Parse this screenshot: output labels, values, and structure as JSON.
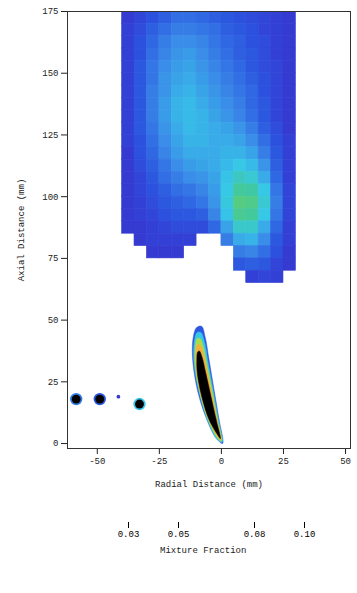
{
  "chart_data": {
    "type": "heatmap",
    "xlabel": "Radial Distance (mm)",
    "ylabel": "Axial Distance (mm)",
    "xlim": [
      -62,
      52
    ],
    "ylim": [
      -2,
      175
    ],
    "xticks": [
      -50,
      -25,
      0,
      25,
      50
    ],
    "yticks": [
      0,
      25,
      50,
      75,
      100,
      125,
      150,
      175
    ],
    "x": [
      -37.5,
      -32.5,
      -27.5,
      -22.5,
      -17.5,
      -12.5,
      -7.5,
      -2.5,
      2.5,
      7.5,
      12.5,
      17.5,
      22.5,
      27.5
    ],
    "y": [
      172.5,
      167.5,
      162.5,
      157.5,
      152.5,
      147.5,
      142.5,
      137.5,
      132.5,
      127.5,
      122.5,
      117.5,
      112.5,
      107.5,
      102.5,
      97.5,
      92.5,
      87.5,
      82.5,
      77.5,
      72.5,
      67.5
    ],
    "z": [
      [
        0.03,
        0.032,
        0.034,
        0.036,
        0.038,
        0.038,
        0.037,
        0.036,
        0.035,
        0.034,
        0.033,
        0.032,
        0.031,
        0.03
      ],
      [
        0.031,
        0.033,
        0.036,
        0.038,
        0.04,
        0.04,
        0.039,
        0.038,
        0.036,
        0.035,
        0.034,
        0.032,
        0.031,
        0.03
      ],
      [
        0.031,
        0.034,
        0.037,
        0.04,
        0.042,
        0.042,
        0.041,
        0.039,
        0.037,
        0.036,
        0.034,
        0.033,
        0.031,
        0.03
      ],
      [
        0.031,
        0.034,
        0.038,
        0.041,
        0.043,
        0.044,
        0.042,
        0.04,
        0.038,
        0.036,
        0.035,
        0.033,
        0.031,
        0.03
      ],
      [
        0.031,
        0.035,
        0.039,
        0.042,
        0.044,
        0.045,
        0.043,
        0.041,
        0.039,
        0.037,
        0.035,
        0.033,
        0.032,
        0.03
      ],
      [
        0.031,
        0.035,
        0.039,
        0.043,
        0.045,
        0.046,
        0.044,
        0.042,
        0.04,
        0.038,
        0.036,
        0.034,
        0.032,
        0.03
      ],
      [
        0.031,
        0.035,
        0.04,
        0.043,
        0.046,
        0.047,
        0.045,
        0.043,
        0.041,
        0.039,
        0.037,
        0.034,
        0.032,
        0.03
      ],
      [
        0.031,
        0.035,
        0.04,
        0.044,
        0.047,
        0.048,
        0.046,
        0.044,
        0.042,
        0.04,
        0.037,
        0.035,
        0.032,
        0.03
      ],
      [
        0.031,
        0.035,
        0.04,
        0.044,
        0.047,
        0.048,
        0.047,
        0.045,
        0.043,
        0.041,
        0.038,
        0.035,
        0.032,
        0.03
      ],
      [
        0.031,
        0.035,
        0.039,
        0.043,
        0.046,
        0.048,
        0.047,
        0.046,
        0.045,
        0.043,
        0.04,
        0.036,
        0.033,
        0.03
      ],
      [
        0.031,
        0.034,
        0.038,
        0.042,
        0.045,
        0.047,
        0.047,
        0.046,
        0.046,
        0.045,
        0.042,
        0.038,
        0.034,
        0.031
      ],
      [
        0.03,
        0.034,
        0.037,
        0.041,
        0.044,
        0.046,
        0.046,
        0.046,
        0.047,
        0.047,
        0.045,
        0.04,
        0.035,
        0.031
      ],
      [
        0.03,
        0.033,
        0.036,
        0.039,
        0.042,
        0.044,
        0.045,
        0.046,
        0.048,
        0.05,
        0.048,
        0.043,
        0.036,
        0.031
      ],
      [
        0.03,
        0.032,
        0.035,
        0.038,
        0.04,
        0.042,
        0.043,
        0.045,
        0.049,
        0.054,
        0.052,
        0.046,
        0.037,
        0.031
      ],
      [
        0.03,
        0.032,
        0.034,
        0.036,
        0.038,
        0.039,
        0.041,
        0.044,
        0.05,
        0.058,
        0.057,
        0.05,
        0.039,
        0.032
      ],
      [
        0.03,
        0.031,
        0.033,
        0.035,
        0.036,
        0.037,
        0.039,
        0.043,
        0.051,
        0.061,
        0.06,
        0.052,
        0.04,
        0.032
      ],
      [
        0.03,
        0.031,
        0.032,
        0.034,
        0.035,
        0.035,
        0.036,
        0.041,
        0.049,
        0.059,
        0.058,
        0.05,
        0.039,
        0.032
      ],
      [
        0.03,
        0.03,
        0.031,
        0.032,
        0.033,
        0.033,
        0.033,
        0.037,
        0.045,
        0.053,
        0.053,
        0.046,
        0.037,
        0.031
      ],
      [
        null,
        0.03,
        0.031,
        0.031,
        0.031,
        0.031,
        null,
        null,
        0.04,
        0.046,
        0.047,
        0.042,
        0.035,
        0.031
      ],
      [
        null,
        null,
        0.03,
        0.03,
        0.03,
        null,
        null,
        null,
        null,
        0.04,
        0.041,
        0.038,
        0.034,
        0.03
      ],
      [
        null,
        null,
        null,
        null,
        null,
        null,
        null,
        null,
        null,
        0.035,
        0.036,
        0.035,
        0.032,
        0.03
      ],
      [
        null,
        null,
        null,
        null,
        null,
        null,
        null,
        null,
        null,
        null,
        0.031,
        0.032,
        0.031,
        null
      ]
    ],
    "spray_contours": [
      {
        "level": 0.035,
        "points": [
          [
            0.5,
            0
          ],
          [
            -1,
            10
          ],
          [
            -3,
            22
          ],
          [
            -5,
            34
          ],
          [
            -6.5,
            43
          ],
          [
            -8,
            47.5
          ],
          [
            -10,
            47
          ],
          [
            -11.5,
            42
          ],
          [
            -11.5,
            33
          ],
          [
            -9.5,
            21
          ],
          [
            -6,
            10
          ],
          [
            -2,
            2
          ]
        ]
      },
      {
        "level": 0.05,
        "points": [
          [
            0.3,
            0.5
          ],
          [
            -1.3,
            10
          ],
          [
            -3.4,
            22
          ],
          [
            -5.4,
            33
          ],
          [
            -6.8,
            41
          ],
          [
            -8.3,
            45
          ],
          [
            -9.8,
            45
          ],
          [
            -11,
            40.5
          ],
          [
            -11,
            32
          ],
          [
            -9,
            21
          ],
          [
            -5.8,
            10
          ],
          [
            -2,
            2
          ]
        ]
      },
      {
        "level": 0.07,
        "points": [
          [
            0,
            1
          ],
          [
            -1.6,
            10
          ],
          [
            -3.8,
            22
          ],
          [
            -5.8,
            32
          ],
          [
            -7.2,
            39
          ],
          [
            -8.5,
            42.5
          ],
          [
            -9.8,
            42.5
          ],
          [
            -10.6,
            38.5
          ],
          [
            -10.5,
            31
          ],
          [
            -8.7,
            20.5
          ],
          [
            -5.5,
            10
          ],
          [
            -1.8,
            2.5
          ]
        ]
      },
      {
        "level": 0.09,
        "points": [
          [
            -0.2,
            1.5
          ],
          [
            -1.9,
            10
          ],
          [
            -4.1,
            21
          ],
          [
            -6.1,
            31
          ],
          [
            -7.5,
            37
          ],
          [
            -8.7,
            40
          ],
          [
            -9.7,
            40
          ],
          [
            -10.3,
            36.5
          ],
          [
            -10.1,
            30
          ],
          [
            -8.3,
            20
          ],
          [
            -5.2,
            10
          ],
          [
            -1.6,
            3
          ]
        ]
      }
    ],
    "liquid_core": {
      "color": "#000000",
      "points": [
        [
          -0.4,
          2
        ],
        [
          -2.2,
          10
        ],
        [
          -4.4,
          20
        ],
        [
          -6.4,
          29
        ],
        [
          -7.8,
          35
        ],
        [
          -8.9,
          37.5
        ],
        [
          -9.6,
          37
        ],
        [
          -9.9,
          34
        ],
        [
          -9.7,
          28.5
        ],
        [
          -7.9,
          19
        ],
        [
          -4.9,
          9.5
        ],
        [
          -1.5,
          3.5
        ]
      ]
    },
    "droplets": [
      {
        "x": -58.5,
        "y": 18,
        "diameter": 5,
        "value": 0.04,
        "liquid": true
      },
      {
        "x": -49,
        "y": 18,
        "diameter": 5,
        "value": 0.035,
        "liquid": true
      },
      {
        "x": -41.5,
        "y": 19,
        "diameter": 1.5,
        "value": 0.03,
        "liquid": false
      },
      {
        "x": -33,
        "y": 16,
        "diameter": 5,
        "value": 0.05,
        "liquid": true
      }
    ],
    "colorbar": {
      "label": "Mixture Fraction",
      "range": [
        0.027,
        0.103
      ],
      "ticks": [
        0.03,
        0.05,
        0.08,
        {
          "value": 0.1,
          "label": "0.10"
        }
      ],
      "colors": [
        "#3c28c8",
        "#2b55e0",
        "#3a8ee8",
        "#37c8e8",
        "#40c8a0",
        "#6cd060",
        "#c8e040",
        "#f8f03c",
        "#f8c040",
        "#f08040",
        "#f07040"
      ]
    }
  }
}
